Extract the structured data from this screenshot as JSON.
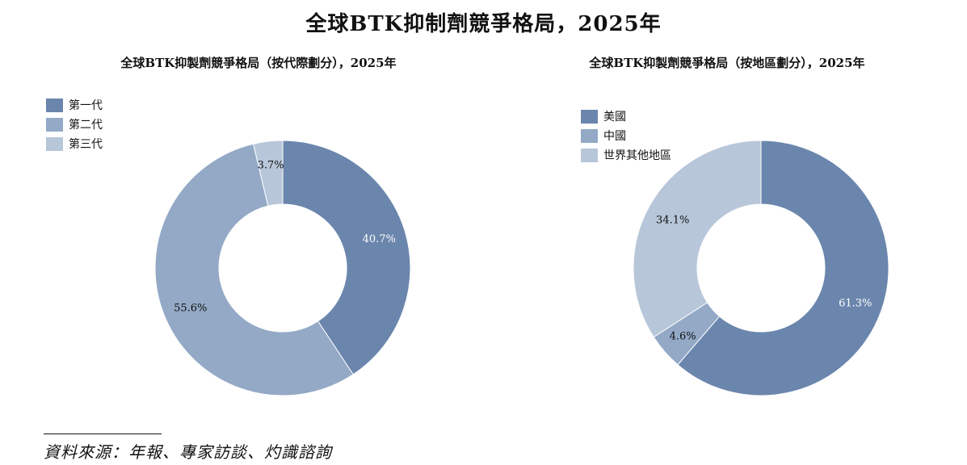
{
  "title": "全球BTK抑制劑競爭格局，2025年",
  "source": "資料來源：年報、專家訪談、灼識諮詢",
  "chart_data": [
    {
      "type": "pie",
      "donut": true,
      "title": "全球BTK抑製劑競爭格局（按代際劃分），2025年",
      "categories": [
        "第一代",
        "第二代",
        "第三代"
      ],
      "values": [
        40.7,
        55.6,
        3.7
      ],
      "labels": [
        "40.7%",
        "55.6%",
        "3.7%"
      ],
      "colors": [
        "#6b86ad",
        "#93a9c6",
        "#b7c6d9"
      ],
      "label_colors": [
        "#ffffff",
        "#111111",
        "#111111"
      ],
      "start": "top, clockwise",
      "legend_position": "top-left"
    },
    {
      "type": "pie",
      "donut": true,
      "title": "全球BTK抑製劑競爭格局（按地區劃分），2025年",
      "categories": [
        "美國",
        "中國",
        "世界其他地區"
      ],
      "values": [
        61.3,
        4.6,
        34.1
      ],
      "labels": [
        "61.3%",
        "4.6%",
        "34.1%"
      ],
      "colors": [
        "#6b86ad",
        "#93a9c6",
        "#b7c6d9"
      ],
      "label_colors": [
        "#ffffff",
        "#111111",
        "#111111"
      ],
      "start": "top, clockwise",
      "legend_position": "top-left"
    }
  ]
}
